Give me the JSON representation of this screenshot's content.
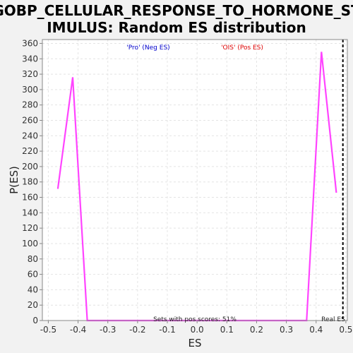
{
  "chart_data": {
    "type": "line",
    "title": "GOBP_CELLULAR_RESPONSE_TO_HORMONE_STIMULUS: Random ES distribution",
    "title_lines": [
      "GOBP_CELLULAR_RESPONSE_TO_HORMONE_ST",
      "IMULUS: Random ES distribution"
    ],
    "xlabel": "ES",
    "ylabel": "P(ES)",
    "xlim": [
      -0.52,
      0.505
    ],
    "ylim": [
      0,
      365
    ],
    "x_ticks": [
      -0.5,
      -0.4,
      -0.3,
      -0.2,
      -0.1,
      0.0,
      0.1,
      0.2,
      0.3,
      0.4,
      0.5
    ],
    "x_tick_labels": [
      "-0.5",
      "-0.4",
      "-0.3",
      "-0.2",
      "-0.1",
      "0.0",
      "0.1",
      "0.2",
      "0.3",
      "0.4",
      "0.5"
    ],
    "y_ticks": [
      0,
      20,
      40,
      60,
      80,
      100,
      120,
      140,
      160,
      180,
      200,
      220,
      240,
      260,
      280,
      300,
      320,
      340,
      360
    ],
    "y_tick_labels": [
      "0",
      "20",
      "40",
      "60",
      "80",
      "100",
      "120",
      "140",
      "160",
      "180",
      "200",
      "220",
      "240",
      "260",
      "280",
      "300",
      "320",
      "340",
      "360"
    ],
    "grid": true,
    "series": [
      {
        "color": "#ff44ff",
        "x": [
          -0.468,
          -0.418,
          -0.369,
          0.0,
          0.368,
          0.418,
          0.468
        ],
        "y": [
          171,
          316,
          0,
          0,
          0,
          349,
          166
        ]
      }
    ],
    "legend": {
      "neg_label": "'Pro' (Neg ES)",
      "pos_label": "'OIS' (Pos ES)",
      "neg_color": "#0000cc",
      "pos_color": "#dd0000"
    },
    "real_es": {
      "x": 0.49,
      "label": "Real ES"
    },
    "annotation": "Sets with pos scores: 51%"
  },
  "colors": {
    "background": "#f2f2f2",
    "plot_background": "#ffffff",
    "grid": "#e4e4e4",
    "axis": "#888888"
  }
}
